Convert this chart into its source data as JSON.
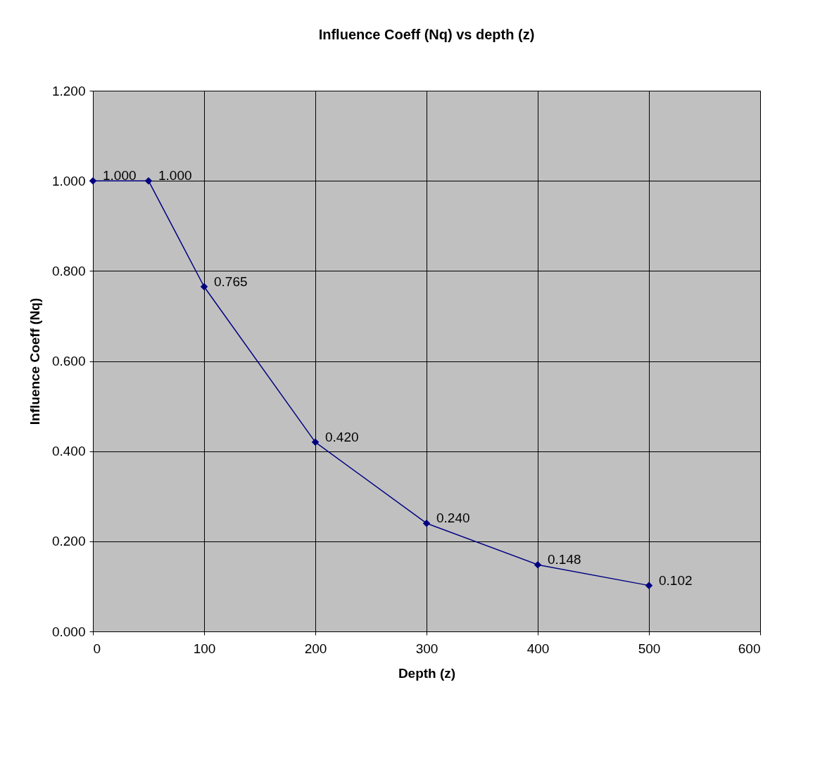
{
  "chart_data": {
    "type": "line",
    "title": "Influence Coeff (Nq) vs depth (z)",
    "xlabel": "Depth (z)",
    "ylabel": "Influence Coeff (Nq)",
    "x": [
      0,
      50,
      100,
      200,
      300,
      400,
      500
    ],
    "series": [
      {
        "color": "#000080",
        "values": [
          1.0,
          1.0,
          0.765,
          0.42,
          0.24,
          0.148,
          0.102
        ],
        "value_labels": [
          "1.000",
          "1.000",
          "0.765",
          "0.420",
          "0.240",
          "0.148",
          "0.102"
        ]
      }
    ],
    "xlim": [
      0,
      600
    ],
    "xticks": [
      0,
      100,
      200,
      300,
      400,
      500,
      600
    ],
    "ylim": [
      0,
      1.2
    ],
    "yticks": [
      {
        "value": 0,
        "label": "0.000"
      },
      {
        "value": 0.2,
        "label": "0.200"
      },
      {
        "value": 0.4,
        "label": "0.400"
      },
      {
        "value": 0.6,
        "label": "0.600"
      },
      {
        "value": 0.8,
        "label": "0.800"
      },
      {
        "value": 1.0,
        "label": "1.000"
      },
      {
        "value": 1.2,
        "label": "1.200"
      }
    ],
    "grid": true,
    "marker": "diamond",
    "line_style": "solid"
  }
}
